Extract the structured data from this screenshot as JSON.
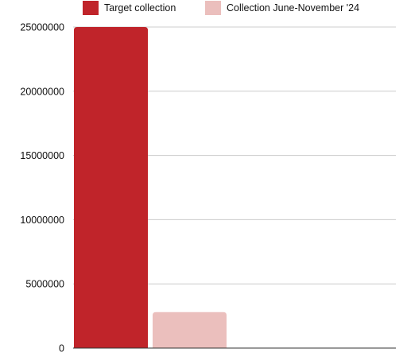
{
  "chart_data": {
    "type": "bar",
    "categories": [
      ""
    ],
    "series": [
      {
        "name": "Target collection",
        "color": "#c0242a",
        "values": [
          25000000
        ]
      },
      {
        "name": "Collection June-November '24",
        "color": "#ebbfbd",
        "values": [
          2800000
        ]
      }
    ],
    "y_ticks": [
      "0",
      "5000000",
      "10000000",
      "15000000",
      "20000000",
      "25000000"
    ],
    "ylim": [
      0,
      25000000
    ],
    "grid": true,
    "legend_position": "top"
  },
  "colors": {
    "grid": "#cccccc",
    "axis": "#333333"
  }
}
